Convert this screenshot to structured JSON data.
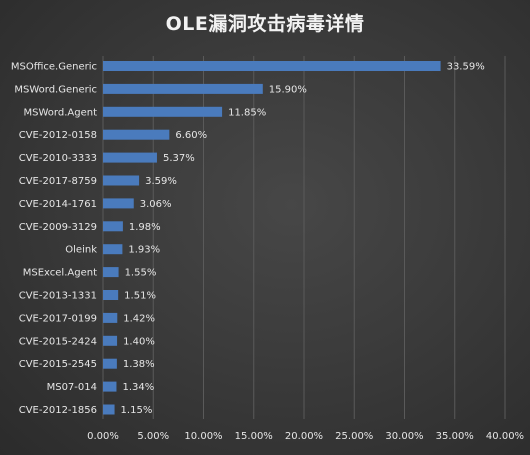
{
  "chart_data": {
    "type": "bar",
    "orientation": "horizontal",
    "title": "OLE漏洞攻击病毒详情",
    "categories": [
      "MSOffice.Generic",
      "MSWord.Generic",
      "MSWord.Agent",
      "CVE-2012-0158",
      "CVE-2010-3333",
      "CVE-2017-8759",
      "CVE-2014-1761",
      "CVE-2009-3129",
      "Oleink",
      "MSExcel.Agent",
      "CVE-2013-1331",
      "CVE-2017-0199",
      "CVE-2015-2424",
      "CVE-2015-2545",
      "MS07-014",
      "CVE-2012-1856"
    ],
    "values": [
      33.59,
      15.9,
      11.85,
      6.6,
      5.37,
      3.59,
      3.06,
      1.98,
      1.93,
      1.55,
      1.51,
      1.42,
      1.4,
      1.38,
      1.34,
      1.15
    ],
    "value_labels": [
      "33.59%",
      "15.90%",
      "11.85%",
      "6.60%",
      "5.37%",
      "3.59%",
      "3.06%",
      "1.98%",
      "1.93%",
      "1.55%",
      "1.51%",
      "1.42%",
      "1.40%",
      "1.38%",
      "1.34%",
      "1.15%"
    ],
    "xlim": [
      0,
      40
    ],
    "x_ticks": [
      0,
      5,
      10,
      15,
      20,
      25,
      30,
      35,
      40
    ],
    "x_tick_labels": [
      "0.00%",
      "5.00%",
      "10.00%",
      "15.00%",
      "20.00%",
      "25.00%",
      "30.00%",
      "35.00%",
      "40.00%"
    ],
    "xlabel": "",
    "ylabel": "",
    "grid": true,
    "legend": "none",
    "colors": {
      "bar": "#4a7bbd",
      "text": "#e6e6e6",
      "grid": "#5a5a5a",
      "background": "#3b3b3b"
    }
  }
}
